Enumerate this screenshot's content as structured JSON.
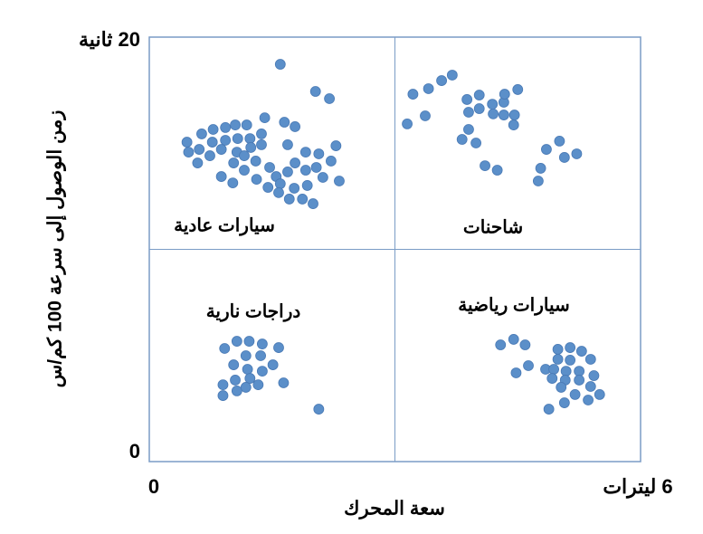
{
  "chart_data": {
    "type": "scatter",
    "x_label": "سعة المحرك",
    "y_label": "زمن الوصول إلى سرعة 100 كم/س",
    "xlim": [
      0,
      6
    ],
    "ylim": [
      0,
      20
    ],
    "xticks": [
      0,
      {
        "value": 6,
        "label": "6 ليترات"
      }
    ],
    "yticks": [
      0,
      {
        "value": 20,
        "label": "20 ثانية"
      }
    ],
    "color": "#5b8fc9",
    "annotations": [
      "سيارات عادية",
      "شاحنات",
      "دراجات نارية",
      "سيارات رياضية"
    ],
    "x": [
      1.6,
      2.03,
      2.2,
      1.41,
      1.65,
      1.78,
      1.05,
      1.19,
      0.93,
      0.78,
      0.64,
      1.37,
      1.23,
      1.08,
      0.93,
      0.77,
      0.46,
      0.61,
      0.88,
      1.07,
      1.24,
      1.37,
      0.48,
      0.74,
      1.16,
      0.59,
      1.03,
      1.3,
      1.69,
      1.91,
      2.07,
      2.28,
      2.22,
      2.04,
      1.91,
      1.78,
      1.69,
      1.55,
      1.47,
      1.16,
      0.88,
      1.02,
      1.31,
      1.45,
      1.6,
      1.77,
      1.93,
      2.12,
      2.32,
      1.58,
      1.71,
      1.87,
      2.0,
      3.15,
      3.37,
      3.22,
      3.41,
      3.57,
      3.7,
      3.88,
      4.03,
      4.19,
      4.33,
      4.5,
      4.34,
      3.9,
      4.03,
      4.2,
      4.33,
      4.46,
      3.9,
      4.45,
      3.82,
      3.99,
      4.1,
      4.25,
      4.85,
      5.01,
      5.07,
      5.22,
      4.78,
      4.75,
      1.07,
      1.22,
      1.38,
      0.92,
      1.58,
      1.18,
      1.36,
      1.03,
      1.51,
      1.2,
      1.38,
      0.9,
      1.05,
      1.23,
      1.33,
      0.9,
      1.07,
      1.18,
      1.64,
      2.07,
      4.29,
      4.45,
      4.59,
      4.48,
      4.63,
      4.84,
      4.99,
      5.14,
      5.28,
      4.99,
      5.14,
      5.39,
      4.94,
      5.09,
      5.25,
      5.43,
      4.92,
      5.08,
      5.25,
      5.39,
      5.03,
      5.2,
      5.36,
      5.5,
      4.88,
      5.07
    ],
    "values": [
      18.72,
      17.44,
      17.1,
      16.2,
      15.99,
      15.78,
      15.86,
      15.86,
      15.74,
      15.65,
      15.44,
      15.44,
      15.22,
      15.22,
      15.14,
      15.05,
      15.05,
      14.71,
      14.71,
      14.58,
      14.8,
      14.93,
      14.58,
      14.41,
      14.41,
      14.07,
      14.07,
      14.16,
      14.93,
      14.58,
      14.5,
      14.88,
      14.16,
      13.86,
      13.73,
      14.07,
      13.65,
      13.43,
      13.86,
      13.73,
      13.43,
      13.13,
      13.3,
      12.92,
      13.09,
      12.88,
      13.01,
      13.39,
      13.22,
      12.67,
      12.37,
      12.37,
      12.15,
      15.91,
      16.29,
      17.31,
      17.57,
      17.95,
      18.21,
      17.06,
      17.27,
      16.84,
      16.93,
      17.53,
      17.31,
      16.46,
      16.63,
      16.38,
      16.33,
      16.33,
      15.65,
      15.86,
      15.18,
      15.01,
      13.94,
      13.73,
      14.71,
      15.1,
      14.33,
      14.5,
      13.82,
      13.22,
      5.67,
      5.67,
      5.54,
      5.33,
      5.37,
      4.99,
      4.99,
      4.56,
      4.56,
      4.35,
      4.26,
      3.62,
      3.84,
      3.92,
      3.62,
      3.11,
      3.33,
      3.5,
      3.71,
      2.47,
      5.5,
      5.76,
      5.5,
      4.18,
      4.52,
      4.35,
      5.29,
      5.37,
      5.2,
      4.82,
      4.78,
      4.82,
      4.35,
      4.26,
      4.26,
      4.05,
      3.92,
      3.84,
      3.84,
      3.54,
      3.5,
      3.16,
      2.9,
      3.16,
      2.47,
      2.77
    ]
  }
}
